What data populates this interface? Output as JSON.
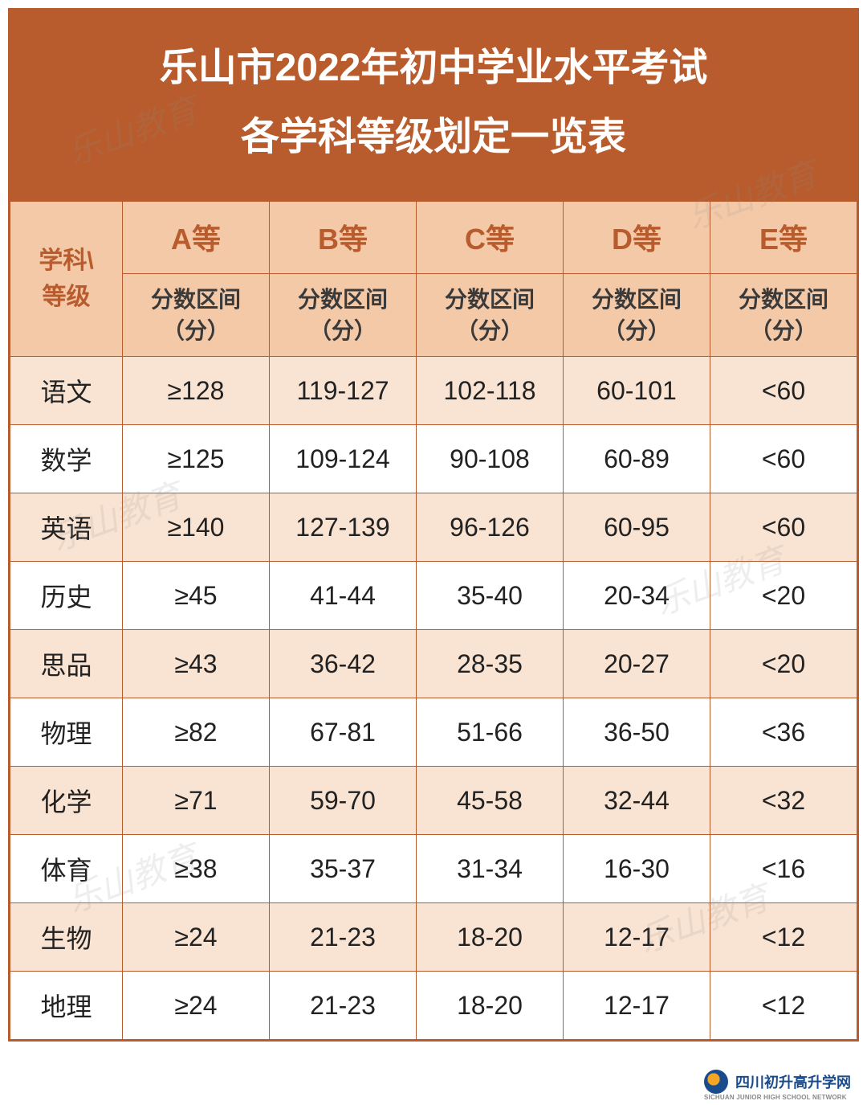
{
  "title": {
    "line1": "乐山市2022年初中学业水平考试",
    "line2": "各学科等级划定一览表"
  },
  "colors": {
    "header_bg": "#b85c2e",
    "header_text": "#ffffff",
    "subheader_bg": "#f4c9a8",
    "subheader_accent": "#b85c2e",
    "row_odd": "#f9e3d2",
    "row_even": "#ffffff",
    "border": "#b85c2e",
    "text": "#222222"
  },
  "table": {
    "corner_label": "学科\\\n等级",
    "grades": [
      "A等",
      "B等",
      "C等",
      "D等",
      "E等"
    ],
    "sub_header": "分数区间（分）",
    "rows": [
      {
        "subject": "语文",
        "values": [
          "≥128",
          "119-127",
          "102-118",
          "60-101",
          "<60"
        ]
      },
      {
        "subject": "数学",
        "values": [
          "≥125",
          "109-124",
          "90-108",
          "60-89",
          "<60"
        ]
      },
      {
        "subject": "英语",
        "values": [
          "≥140",
          "127-139",
          "96-126",
          "60-95",
          "<60"
        ]
      },
      {
        "subject": "历史",
        "values": [
          "≥45",
          "41-44",
          "35-40",
          "20-34",
          "<20"
        ]
      },
      {
        "subject": "思品",
        "values": [
          "≥43",
          "36-42",
          "28-35",
          "20-27",
          "<20"
        ]
      },
      {
        "subject": "物理",
        "values": [
          "≥82",
          "67-81",
          "51-66",
          "36-50",
          "<36"
        ]
      },
      {
        "subject": "化学",
        "values": [
          "≥71",
          "59-70",
          "45-58",
          "32-44",
          "<32"
        ]
      },
      {
        "subject": "体育",
        "values": [
          "≥38",
          "35-37",
          "31-34",
          "16-30",
          "<16"
        ]
      },
      {
        "subject": "生物",
        "values": [
          "≥24",
          "21-23",
          "18-20",
          "12-17",
          "<12"
        ]
      },
      {
        "subject": "地理",
        "values": [
          "≥24",
          "21-23",
          "18-20",
          "12-17",
          "<12"
        ]
      }
    ]
  },
  "watermark": "乐山教育",
  "logo": {
    "text": "四川初升高升学网",
    "sub": "SICHUAN JUNIOR HIGH SCHOOL NETWORK"
  }
}
